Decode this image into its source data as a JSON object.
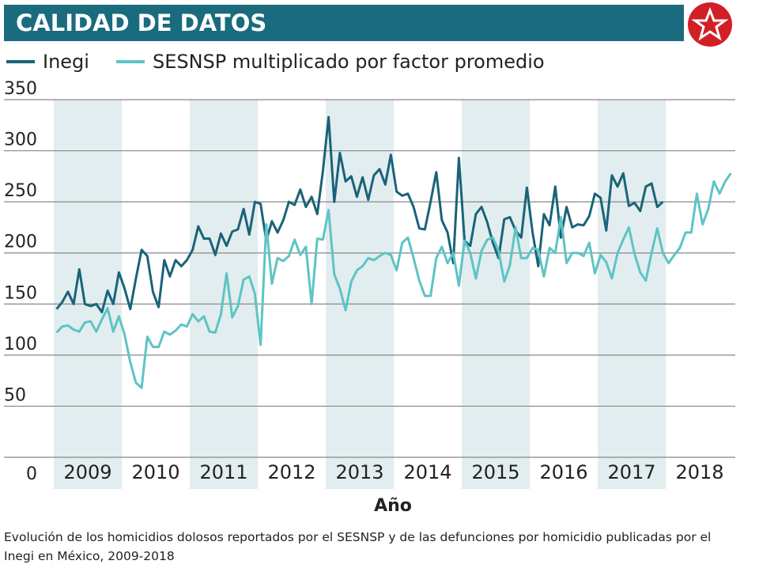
{
  "chart_data": {
    "type": "line",
    "title": "CALIDAD DE DATOS",
    "x_labels": [
      "2009",
      "2010",
      "2011",
      "2012",
      "2013",
      "2014",
      "2015",
      "2016",
      "2017",
      "2018"
    ],
    "xlabel": "Año",
    "caption": "Evolución de los homicidios dolosos reportados por el SESNSP y de las defunciones por homicidio publicadas por el Inegi en México, 2009-2018",
    "ylim": [
      0,
      350
    ],
    "yticks": [
      0,
      50,
      100,
      150,
      200,
      250,
      300,
      350
    ],
    "grid": true,
    "series": [
      {
        "name": "Inegi",
        "color": "#1a6378",
        "values": [
          145,
          152,
          162,
          150,
          184,
          150,
          148,
          150,
          142,
          163,
          150,
          181,
          165,
          145,
          175,
          203,
          197,
          162,
          147,
          193,
          177,
          193,
          187,
          193,
          203,
          226,
          214,
          214,
          198,
          219,
          207,
          221,
          223,
          243,
          218,
          250,
          248,
          212,
          231,
          220,
          232,
          250,
          247,
          262,
          245,
          255,
          238,
          280,
          333,
          250,
          298,
          270,
          275,
          255,
          274,
          252,
          276,
          282,
          267,
          296,
          260,
          256,
          258,
          245,
          224,
          223,
          250,
          279,
          232,
          220,
          190,
          293,
          212,
          207,
          238,
          245,
          230,
          210,
          195,
          233,
          235,
          222,
          215,
          264,
          220,
          187,
          238,
          227,
          265,
          215,
          245,
          225,
          228,
          227,
          236,
          258,
          254,
          222,
          276,
          265,
          278,
          246,
          249,
          241,
          265,
          268,
          245,
          250
        ]
      },
      {
        "name": "SESNSP multiplicado por factor promedio",
        "color": "#5ec4c4",
        "values": [
          122,
          128,
          129,
          125,
          123,
          132,
          133,
          123,
          135,
          146,
          123,
          138,
          120,
          93,
          73,
          68,
          118,
          108,
          108,
          123,
          120,
          124,
          130,
          128,
          140,
          133,
          138,
          123,
          122,
          140,
          180,
          137,
          148,
          174,
          177,
          160,
          110,
          228,
          170,
          195,
          192,
          197,
          213,
          198,
          206,
          150,
          214,
          213,
          242,
          179,
          165,
          144,
          172,
          183,
          187,
          195,
          193,
          197,
          200,
          198,
          183,
          210,
          215,
          195,
          173,
          158,
          158,
          195,
          206,
          190,
          200,
          168,
          212,
          200,
          175,
          202,
          213,
          215,
          202,
          172,
          188,
          225,
          195,
          195,
          205,
          203,
          177,
          205,
          200,
          235,
          190,
          200,
          200,
          197,
          210,
          180,
          198,
          191,
          175,
          200,
          213,
          225,
          199,
          181,
          173,
          200,
          224,
          200,
          190,
          198,
          205,
          220,
          220,
          258,
          228,
          243,
          270,
          258,
          270,
          278
        ]
      }
    ]
  }
}
